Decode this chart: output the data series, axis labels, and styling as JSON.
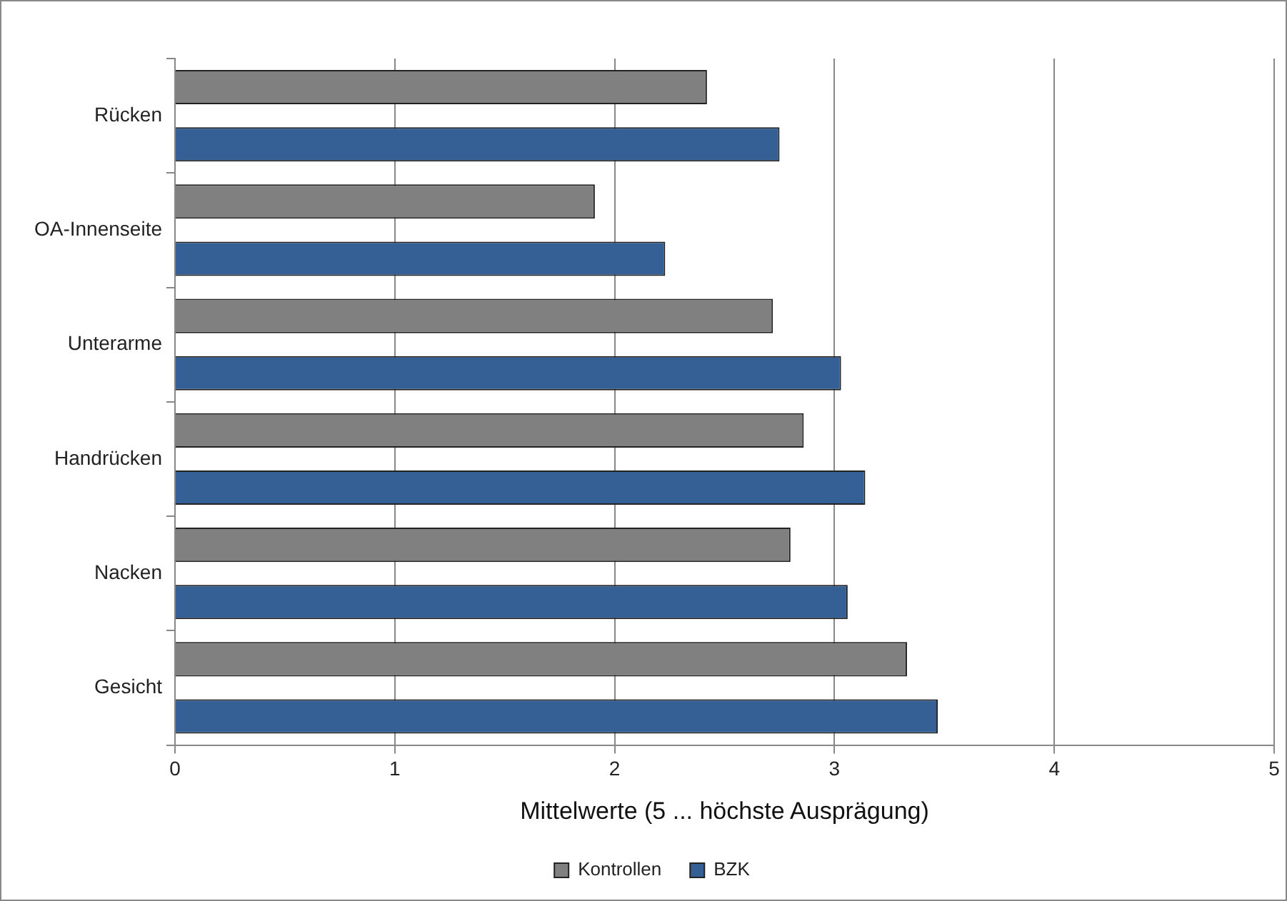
{
  "chart_data": {
    "type": "bar",
    "orientation": "horizontal",
    "xlabel": "Mittelwerte (5 ... höchste Ausprägung)",
    "categories": [
      "Rücken",
      "OA-Innenseite",
      "Unterarme",
      "Handrücken",
      "Nacken",
      "Gesicht"
    ],
    "series": [
      {
        "name": "Kontrollen",
        "color": "#808080",
        "values": [
          2.42,
          1.91,
          2.72,
          2.86,
          2.8,
          3.33
        ]
      },
      {
        "name": "BZK",
        "color": "#356096",
        "values": [
          2.75,
          2.23,
          3.03,
          3.14,
          3.06,
          3.47
        ]
      }
    ],
    "xlim": [
      0,
      5
    ],
    "xticks": [
      0,
      1,
      2,
      3,
      4,
      5
    ],
    "grid": "x",
    "legend": "bottom"
  }
}
